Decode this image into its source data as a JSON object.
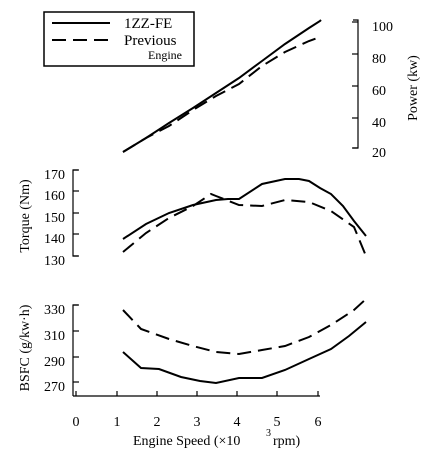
{
  "chart_data": {
    "type": "line",
    "xlabel": "Engine  Speed (×10",
    "xlabel_sup": "3",
    "xlabel_unit": "rpm)",
    "x_ticks": [
      "0",
      "1",
      "2",
      "3",
      "4",
      "5",
      "6"
    ],
    "xlim": [
      0,
      6
    ],
    "legend": {
      "position": "top-left",
      "entries": [
        {
          "label": "1ZZ-FE",
          "style": "solid"
        },
        {
          "label": "Previous",
          "sublabel": "Engine",
          "style": "dashed"
        }
      ]
    },
    "panels": [
      {
        "ylabel": "Power (kw)",
        "y_axis_side": "right",
        "ylim": [
          20,
          100
        ],
        "y_ticks": [
          "100",
          "80",
          "60",
          "40",
          "20"
        ],
        "series": [
          {
            "name": "1ZZ-FE",
            "style": "solid",
            "x": [
              1.2,
              1.6,
              2.0,
              2.4,
              2.8,
              3.2,
              3.6,
              4.0,
              4.4,
              4.8,
              5.2,
              5.6,
              6.0
            ],
            "y": [
              20,
              27,
              34,
              41,
              47,
              54,
              62,
              70,
              77,
              84,
              88,
              90,
              88
            ]
          },
          {
            "name": "Previous Engine",
            "style": "dashed",
            "x": [
              1.2,
              1.6,
              2.0,
              2.4,
              2.8,
              3.2,
              3.6,
              4.0,
              4.4,
              4.8,
              5.2,
              5.6
            ],
            "y": [
              20,
              27,
              33,
              40,
              47,
              52,
              60,
              67,
              73,
              77,
              79,
              78
            ]
          }
        ]
      },
      {
        "ylabel": "Torque (Nm)",
        "y_axis_side": "left",
        "ylim": [
          130,
          170
        ],
        "y_ticks": [
          "170",
          "160",
          "150",
          "140",
          "130"
        ],
        "series": [
          {
            "name": "1ZZ-FE",
            "style": "solid",
            "x": [
              1.2,
              1.6,
              2.0,
              2.4,
              2.8,
              3.0,
              3.2,
              3.6,
              4.0,
              4.4,
              4.8,
              5.2,
              5.6,
              6.0
            ],
            "y": [
              138,
              145,
              150,
              154,
              156,
              158,
              157,
              163,
              165,
              165.5,
              164,
              160,
              153,
              139
            ]
          },
          {
            "name": "Previous Engine",
            "style": "dashed",
            "x": [
              1.2,
              1.6,
              2.0,
              2.4,
              2.8,
              3.2,
              3.6,
              4.0,
              4.4,
              4.8,
              5.2,
              5.6
            ],
            "y": [
              132,
              141,
              148,
              154,
              158,
              154,
              153.5,
              156,
              155,
              151,
              143,
              130
            ]
          }
        ]
      },
      {
        "ylabel": "BSFC (g/kw·h)",
        "y_axis_side": "left",
        "ylim": [
          260,
          330
        ],
        "y_ticks": [
          "330",
          "310",
          "290",
          "270"
        ],
        "series": [
          {
            "name": "1ZZ-FE",
            "style": "solid",
            "x": [
              1.2,
              1.6,
              2.0,
              2.4,
              2.8,
              3.2,
              3.6,
              4.0,
              4.4,
              4.8,
              5.2,
              5.6,
              6.0
            ],
            "y": [
              287,
              275,
              274,
              270,
              266,
              264,
              267,
              267,
              273,
              281,
              289,
              301,
              312
            ]
          },
          {
            "name": "Previous Engine",
            "style": "dashed",
            "x": [
              1.2,
              1.6,
              2.0,
              2.4,
              2.8,
              3.2,
              3.6,
              4.0,
              4.4,
              4.8,
              5.2,
              5.6
            ],
            "y": [
              322,
              306,
              300,
              295,
              290,
              287,
              290,
              292,
              296,
              304,
              313,
              329
            ]
          }
        ]
      }
    ]
  }
}
